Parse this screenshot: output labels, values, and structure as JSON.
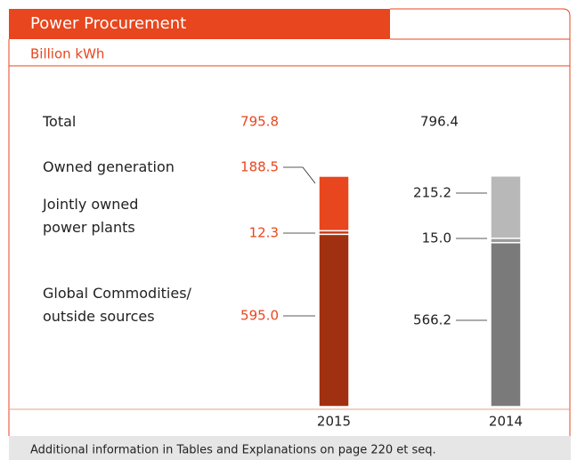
{
  "chart_data": {
    "type": "stacked-bar",
    "title": "Power Procurement",
    "subtitle": "Billion kWh",
    "note": "Additional information in Tables and Explanations on page 220 et seq.",
    "categories": [
      "2015",
      "2014"
    ],
    "total_label": "Total",
    "totals": [
      795.8,
      796.4
    ],
    "label_colors": [
      "#e8461e",
      "#222222"
    ],
    "series": [
      {
        "name": "Global Commodities/\noutside sources",
        "values": [
          595,
          566.2
        ],
        "value_labels": [
          "595.0",
          "566.2"
        ],
        "colors": [
          "#a13010",
          "#7a7a7a"
        ]
      },
      {
        "name": "Jointly owned\npower plants",
        "values": [
          12.3,
          15
        ],
        "value_labels": [
          "12.3",
          "15.0"
        ],
        "colors": [
          "#c23a16",
          "#9a9a9a"
        ]
      },
      {
        "name": "Owned generation",
        "values": [
          188.5,
          215.2
        ],
        "colors": [
          "#e8461e",
          "#b8b8b8"
        ]
      }
    ],
    "ylim": [
      0,
      800
    ]
  }
}
